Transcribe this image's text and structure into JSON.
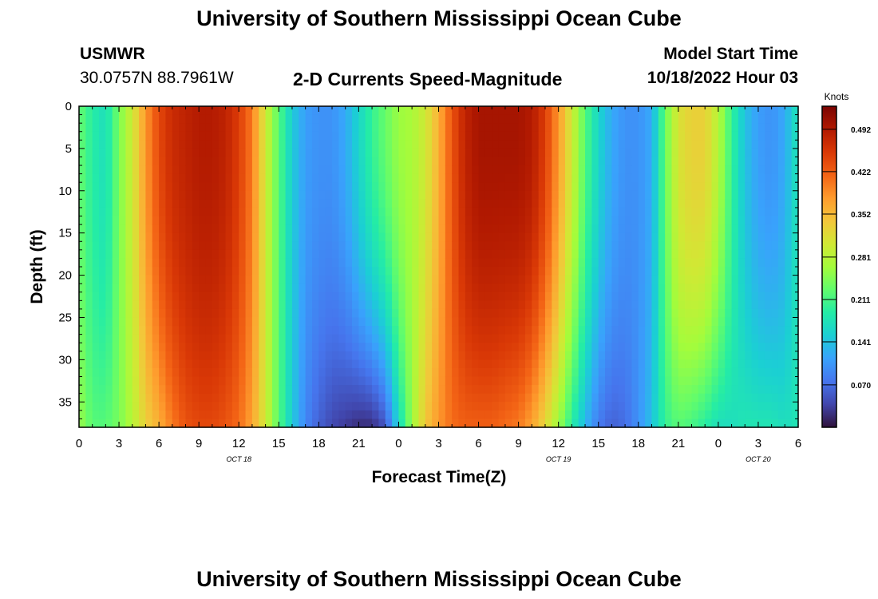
{
  "header": {
    "title": "University of Southern Mississippi Ocean Cube",
    "station_id": "USMWR",
    "coordinates": "30.0757N  88.7961W",
    "product": "2-D Currents Speed-Magnitude",
    "model_start_label": "Model Start Time",
    "model_start_value": "10/18/2022 Hour 03"
  },
  "footer": {
    "title": "University of Southern Mississippi Ocean Cube"
  },
  "colors": {
    "scale": [
      "#30123b",
      "#4145ab",
      "#4675ed",
      "#39a2fc",
      "#1bcfd4",
      "#24eca6",
      "#61fc6c",
      "#a4fc3b",
      "#d1e834",
      "#f3c63a",
      "#fe9b2d",
      "#f36315",
      "#d93806",
      "#b11901",
      "#7a0402"
    ]
  },
  "chart_data": {
    "type": "heatmap",
    "xlabel": "Forecast Time(Z)",
    "ylabel": "Depth (ft)",
    "x_range_hours": [
      0,
      54
    ],
    "x_ticks": [
      {
        "hour": 0,
        "label": "0"
      },
      {
        "hour": 3,
        "label": "3"
      },
      {
        "hour": 6,
        "label": "6"
      },
      {
        "hour": 9,
        "label": "9"
      },
      {
        "hour": 12,
        "label": "12"
      },
      {
        "hour": 15,
        "label": "15"
      },
      {
        "hour": 18,
        "label": "18"
      },
      {
        "hour": 21,
        "label": "21"
      },
      {
        "hour": 24,
        "label": "0"
      },
      {
        "hour": 27,
        "label": "3"
      },
      {
        "hour": 30,
        "label": "6"
      },
      {
        "hour": 33,
        "label": "9"
      },
      {
        "hour": 36,
        "label": "12"
      },
      {
        "hour": 39,
        "label": "15"
      },
      {
        "hour": 42,
        "label": "18"
      },
      {
        "hour": 45,
        "label": "21"
      },
      {
        "hour": 48,
        "label": "0"
      },
      {
        "hour": 51,
        "label": "3"
      },
      {
        "hour": 54,
        "label": "6"
      }
    ],
    "date_labels": [
      {
        "hour": 12,
        "label": "OCT 18"
      },
      {
        "hour": 36,
        "label": "OCT 19"
      },
      {
        "hour": 51,
        "label": "OCT 20"
      }
    ],
    "y_range": [
      0,
      38
    ],
    "y_ticks": [
      0,
      5,
      10,
      15,
      20,
      25,
      30,
      35
    ],
    "colorbar": {
      "label": "Knots",
      "range": [
        0.0,
        0.53
      ],
      "ticks": [
        0.492,
        0.422,
        0.352,
        0.281,
        0.211,
        0.141,
        0.07
      ]
    },
    "grid": false,
    "speed_profile": {
      "hours": [
        0,
        1,
        2,
        3,
        4,
        5,
        6,
        7,
        8,
        9,
        10,
        11,
        12,
        13,
        14,
        15,
        16,
        17,
        18,
        19,
        20,
        21,
        22,
        23,
        24,
        25,
        26,
        27,
        28,
        29,
        30,
        31,
        32,
        33,
        34,
        35,
        36,
        37,
        38,
        39,
        40,
        41,
        42,
        43,
        44,
        45,
        46,
        47,
        48,
        49,
        50,
        51,
        52,
        53,
        54
      ],
      "surface_knots": [
        0.23,
        0.19,
        0.17,
        0.24,
        0.3,
        0.38,
        0.44,
        0.47,
        0.48,
        0.49,
        0.49,
        0.48,
        0.45,
        0.4,
        0.3,
        0.22,
        0.15,
        0.11,
        0.1,
        0.1,
        0.12,
        0.16,
        0.2,
        0.23,
        0.26,
        0.27,
        0.3,
        0.36,
        0.43,
        0.48,
        0.5,
        0.5,
        0.5,
        0.5,
        0.49,
        0.45,
        0.38,
        0.3,
        0.22,
        0.16,
        0.12,
        0.1,
        0.1,
        0.12,
        0.23,
        0.31,
        0.33,
        0.33,
        0.28,
        0.2,
        0.14,
        0.11,
        0.1,
        0.12,
        0.18
      ],
      "bottom_knots": [
        0.26,
        0.22,
        0.22,
        0.24,
        0.28,
        0.33,
        0.36,
        0.4,
        0.43,
        0.44,
        0.44,
        0.43,
        0.41,
        0.37,
        0.3,
        0.22,
        0.15,
        0.09,
        0.06,
        0.04,
        0.03,
        0.02,
        0.02,
        0.05,
        0.16,
        0.26,
        0.34,
        0.38,
        0.41,
        0.42,
        0.42,
        0.42,
        0.41,
        0.4,
        0.37,
        0.32,
        0.26,
        0.19,
        0.13,
        0.08,
        0.06,
        0.07,
        0.1,
        0.14,
        0.2,
        0.22,
        0.21,
        0.19,
        0.17,
        0.17,
        0.18,
        0.18,
        0.18,
        0.17,
        0.18
      ]
    }
  }
}
